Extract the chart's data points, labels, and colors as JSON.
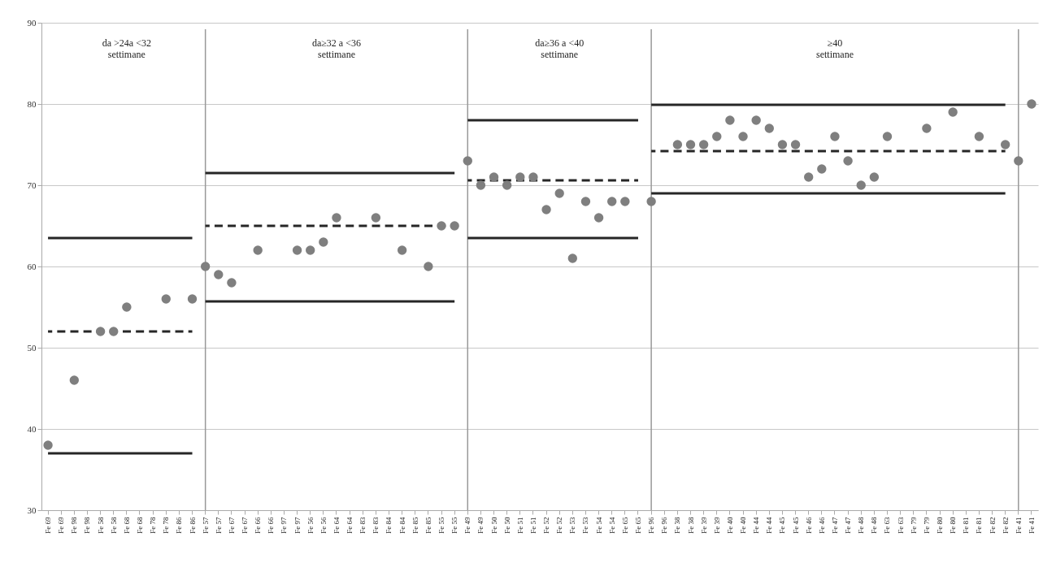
{
  "chart_data": {
    "type": "scatter",
    "categories": [
      "Fe 69",
      "Fe 69",
      "Fe 98",
      "Fe 98",
      "Fe 58",
      "Fe 58",
      "Fe 68",
      "Fe 68",
      "Fe 78",
      "Fe 78",
      "Fe 86",
      "Fe 86",
      "Fe 57",
      "Fe 57",
      "Fe 67",
      "Fe 67",
      "Fe 66",
      "Fe 66",
      "Fe 97",
      "Fe 97",
      "Fe 56",
      "Fe 56",
      "Fe 64",
      "Fe 64",
      "Fe 83",
      "Fe 83",
      "Fe 84",
      "Fe 84",
      "Fe 85",
      "Fe 85",
      "Fe 55",
      "Fe 55",
      "Fe 49",
      "Fe 49",
      "Fe 50",
      "Fe 50",
      "Fe 51",
      "Fe 51",
      "Fe 52",
      "Fe 52",
      "Fe 53",
      "Fe 53",
      "Fe 54",
      "Fe 54",
      "Fe 65",
      "Fe 65",
      "Fe 96",
      "Fe 96",
      "Fe 38",
      "Fe 38",
      "Fe 39",
      "Fe 39",
      "Fe 40",
      "Fe 40",
      "Fe 44",
      "Fe 44",
      "Fe 45",
      "Fe 45",
      "Fe 46",
      "Fe 46",
      "Fe 47",
      "Fe 47",
      "Fe 48",
      "Fe 48",
      "Fe 63",
      "Fe 63",
      "Fe 79",
      "Fe 79",
      "Fe 80",
      "Fe 80",
      "Fe 81",
      "Fe 81",
      "Fe 82",
      "Fe 82",
      "Fe 41",
      "Fe 41"
    ],
    "series": [
      {
        "type": "scatter",
        "color": "#7f7f7f",
        "marker": "circle",
        "values": [
          38,
          null,
          46,
          null,
          52,
          52,
          55,
          null,
          null,
          56,
          null,
          56,
          60,
          59,
          58,
          null,
          62,
          null,
          null,
          62,
          62,
          63,
          66,
          null,
          null,
          66,
          null,
          62,
          null,
          60,
          65,
          65,
          73,
          70,
          71,
          70,
          71,
          71,
          67,
          69,
          61,
          68,
          66,
          68,
          68,
          null,
          68,
          null,
          75,
          75,
          75,
          76,
          78,
          76,
          78,
          77,
          75,
          75,
          71,
          72,
          76,
          73,
          70,
          71,
          76,
          null,
          null,
          77,
          null,
          79,
          null,
          76,
          null,
          75,
          73,
          80
        ]
      },
      {
        "type": "line",
        "color": "#262626",
        "line_style": "solid",
        "values": [
          63.5,
          63.5,
          63.5,
          63.5,
          63.5,
          63.5,
          63.5,
          63.5,
          63.5,
          63.5,
          63.5,
          63.5,
          null,
          null,
          null,
          null,
          null,
          null,
          null,
          null,
          null,
          null,
          null,
          null,
          null,
          null,
          null,
          null,
          null,
          null,
          null,
          null,
          null,
          null,
          null,
          null,
          null,
          null,
          null,
          null,
          null,
          null,
          null,
          null,
          null,
          null,
          null,
          null,
          null,
          null,
          null,
          null,
          null,
          null,
          null,
          null,
          null,
          null,
          null,
          null,
          null,
          null,
          null,
          null,
          null,
          null,
          null,
          null,
          null,
          null,
          null,
          null,
          null,
          null,
          null,
          null
        ]
      },
      {
        "type": "line",
        "color": "#262626",
        "line_style": "dashed",
        "values": [
          52,
          52,
          52,
          52,
          52,
          52,
          52,
          52,
          52,
          52,
          52,
          52,
          null,
          null,
          null,
          null,
          null,
          null,
          null,
          null,
          null,
          null,
          null,
          null,
          null,
          null,
          null,
          null,
          null,
          null,
          null,
          null,
          null,
          null,
          null,
          null,
          null,
          null,
          null,
          null,
          null,
          null,
          null,
          null,
          null,
          null,
          null,
          null,
          null,
          null,
          null,
          null,
          null,
          null,
          null,
          null,
          null,
          null,
          null,
          null,
          null,
          null,
          null,
          null,
          null,
          null,
          null,
          null,
          null,
          null,
          null,
          null,
          null,
          null,
          null,
          null
        ]
      },
      {
        "type": "line",
        "color": "#262626",
        "line_style": "solid",
        "values": [
          37,
          37,
          37,
          37,
          37,
          37,
          37,
          37,
          37,
          37,
          37,
          37,
          null,
          null,
          null,
          null,
          null,
          null,
          null,
          null,
          null,
          null,
          null,
          null,
          null,
          null,
          null,
          null,
          null,
          null,
          null,
          null,
          null,
          null,
          null,
          null,
          null,
          null,
          null,
          null,
          null,
          null,
          null,
          null,
          null,
          null,
          null,
          null,
          null,
          null,
          null,
          null,
          null,
          null,
          null,
          null,
          null,
          null,
          null,
          null,
          null,
          null,
          null,
          null,
          null,
          null,
          null,
          null,
          null,
          null,
          null,
          null,
          null,
          null,
          null,
          null
        ]
      },
      {
        "type": "line",
        "color": "#262626",
        "line_style": "solid",
        "values": [
          null,
          null,
          null,
          null,
          null,
          null,
          null,
          null,
          null,
          null,
          null,
          null,
          71.5,
          71.5,
          71.5,
          71.5,
          71.5,
          71.5,
          71.5,
          71.5,
          71.5,
          71.5,
          71.5,
          71.5,
          71.5,
          71.5,
          71.5,
          71.5,
          71.5,
          71.5,
          71.5,
          71.5,
          null,
          null,
          null,
          null,
          null,
          null,
          null,
          null,
          null,
          null,
          null,
          null,
          null,
          null,
          null,
          null,
          null,
          null,
          null,
          null,
          null,
          null,
          null,
          null,
          null,
          null,
          null,
          null,
          null,
          null,
          null,
          null,
          null,
          null,
          null,
          null,
          null,
          null,
          null,
          null,
          null,
          null,
          null,
          null
        ]
      },
      {
        "type": "line",
        "color": "#262626",
        "line_style": "dashed",
        "values": [
          null,
          null,
          null,
          null,
          null,
          null,
          null,
          null,
          null,
          null,
          null,
          null,
          65,
          65,
          65,
          65,
          65,
          65,
          65,
          65,
          65,
          65,
          65,
          65,
          65,
          65,
          65,
          65,
          65,
          65,
          65,
          65,
          null,
          null,
          null,
          null,
          null,
          null,
          null,
          null,
          null,
          null,
          null,
          null,
          null,
          null,
          null,
          null,
          null,
          null,
          null,
          null,
          null,
          null,
          null,
          null,
          null,
          null,
          null,
          null,
          null,
          null,
          null,
          null,
          null,
          null,
          null,
          null,
          null,
          null,
          null,
          null,
          null,
          null,
          null,
          null
        ]
      },
      {
        "type": "line",
        "color": "#262626",
        "line_style": "solid",
        "values": [
          null,
          null,
          null,
          null,
          null,
          null,
          null,
          null,
          null,
          null,
          null,
          null,
          55.7,
          55.7,
          55.7,
          55.7,
          55.7,
          55.7,
          55.7,
          55.7,
          55.7,
          55.7,
          55.7,
          55.7,
          55.7,
          55.7,
          55.7,
          55.7,
          55.7,
          55.7,
          55.7,
          55.7,
          null,
          null,
          null,
          null,
          null,
          null,
          null,
          null,
          null,
          null,
          null,
          null,
          null,
          null,
          null,
          null,
          null,
          null,
          null,
          null,
          null,
          null,
          null,
          null,
          null,
          null,
          null,
          null,
          null,
          null,
          null,
          null,
          null,
          null,
          null,
          null,
          null,
          null,
          null,
          null,
          null,
          null,
          null,
          null
        ]
      },
      {
        "type": "line",
        "color": "#262626",
        "line_style": "solid",
        "values": [
          null,
          null,
          null,
          null,
          null,
          null,
          null,
          null,
          null,
          null,
          null,
          null,
          null,
          null,
          null,
          null,
          null,
          null,
          null,
          null,
          null,
          null,
          null,
          null,
          null,
          null,
          null,
          null,
          null,
          null,
          null,
          null,
          78,
          78,
          78,
          78,
          78,
          78,
          78,
          78,
          78,
          78,
          78,
          78,
          78,
          78,
          null,
          null,
          null,
          null,
          null,
          null,
          null,
          null,
          null,
          null,
          null,
          null,
          null,
          null,
          null,
          null,
          null,
          null,
          null,
          null,
          null,
          null,
          null,
          null,
          null,
          null,
          null,
          null,
          null,
          null
        ]
      },
      {
        "type": "line",
        "color": "#262626",
        "line_style": "dashed",
        "values": [
          null,
          null,
          null,
          null,
          null,
          null,
          null,
          null,
          null,
          null,
          null,
          null,
          null,
          null,
          null,
          null,
          null,
          null,
          null,
          null,
          null,
          null,
          null,
          null,
          null,
          null,
          null,
          null,
          null,
          null,
          null,
          null,
          70.6,
          70.6,
          70.6,
          70.6,
          70.6,
          70.6,
          70.6,
          70.6,
          70.6,
          70.6,
          70.6,
          70.6,
          70.6,
          70.6,
          null,
          null,
          null,
          null,
          null,
          null,
          null,
          null,
          null,
          null,
          null,
          null,
          null,
          null,
          null,
          null,
          null,
          null,
          null,
          null,
          null,
          null,
          null,
          null,
          null,
          null,
          null,
          null,
          null,
          null
        ]
      },
      {
        "type": "line",
        "color": "#262626",
        "line_style": "solid",
        "values": [
          null,
          null,
          null,
          null,
          null,
          null,
          null,
          null,
          null,
          null,
          null,
          null,
          null,
          null,
          null,
          null,
          null,
          null,
          null,
          null,
          null,
          null,
          null,
          null,
          null,
          null,
          null,
          null,
          null,
          null,
          null,
          null,
          63.5,
          63.5,
          63.5,
          63.5,
          63.5,
          63.5,
          63.5,
          63.5,
          63.5,
          63.5,
          63.5,
          63.5,
          63.5,
          63.5,
          null,
          null,
          null,
          null,
          null,
          null,
          null,
          null,
          null,
          null,
          null,
          null,
          null,
          null,
          null,
          null,
          null,
          null,
          null,
          null,
          null,
          null,
          null,
          null,
          null,
          null,
          null,
          null,
          null,
          null
        ]
      },
      {
        "type": "line",
        "color": "#262626",
        "line_style": "solid",
        "values": [
          null,
          null,
          null,
          null,
          null,
          null,
          null,
          null,
          null,
          null,
          null,
          null,
          null,
          null,
          null,
          null,
          null,
          null,
          null,
          null,
          null,
          null,
          null,
          null,
          null,
          null,
          null,
          null,
          null,
          null,
          null,
          null,
          null,
          null,
          null,
          null,
          null,
          null,
          null,
          null,
          null,
          null,
          null,
          null,
          null,
          null,
          79.9,
          79.9,
          79.9,
          79.9,
          79.9,
          79.9,
          79.9,
          79.9,
          79.9,
          79.9,
          79.9,
          79.9,
          79.9,
          79.9,
          79.9,
          79.9,
          79.9,
          79.9,
          79.9,
          79.9,
          79.9,
          79.9,
          79.9,
          79.9,
          79.9,
          79.9,
          79.9,
          79.9,
          null,
          null
        ]
      },
      {
        "type": "line",
        "color": "#262626",
        "line_style": "dashed",
        "values": [
          null,
          null,
          null,
          null,
          null,
          null,
          null,
          null,
          null,
          null,
          null,
          null,
          null,
          null,
          null,
          null,
          null,
          null,
          null,
          null,
          null,
          null,
          null,
          null,
          null,
          null,
          null,
          null,
          null,
          null,
          null,
          null,
          null,
          null,
          null,
          null,
          null,
          null,
          null,
          null,
          null,
          null,
          null,
          null,
          null,
          null,
          74.2,
          74.2,
          74.2,
          74.2,
          74.2,
          74.2,
          74.2,
          74.2,
          74.2,
          74.2,
          74.2,
          74.2,
          74.2,
          74.2,
          74.2,
          74.2,
          74.2,
          74.2,
          74.2,
          74.2,
          74.2,
          74.2,
          74.2,
          74.2,
          74.2,
          74.2,
          74.2,
          74.2,
          null,
          null
        ]
      },
      {
        "type": "line",
        "color": "#262626",
        "line_style": "solid",
        "values": [
          null,
          null,
          null,
          null,
          null,
          null,
          null,
          null,
          null,
          null,
          null,
          null,
          null,
          null,
          null,
          null,
          null,
          null,
          null,
          null,
          null,
          null,
          null,
          null,
          null,
          null,
          null,
          null,
          null,
          null,
          null,
          null,
          null,
          null,
          null,
          null,
          null,
          null,
          null,
          null,
          null,
          null,
          null,
          null,
          null,
          null,
          69,
          69,
          69,
          69,
          69,
          69,
          69,
          69,
          69,
          69,
          69,
          69,
          69,
          69,
          69,
          69,
          69,
          69,
          69,
          69,
          69,
          69,
          69,
          69,
          69,
          69,
          69,
          69,
          null,
          null
        ]
      }
    ],
    "ref_lines": [
      {
        "axis": "x",
        "value": "Fe 57",
        "color": "#999999"
      },
      {
        "axis": "x",
        "value": "Fe 49",
        "color": "#999999"
      },
      {
        "axis": "x",
        "value": "Fe 96",
        "color": "#999999"
      },
      {
        "axis": "x",
        "value": "Fe 41",
        "color": "#999999"
      }
    ],
    "annotations": [
      "da >24a <32\nsettimane",
      "da≥32 a <36\nsettimane",
      "da≥36 a <40\nsettimane",
      "≥40\nsettimane"
    ],
    "ylim": [
      30,
      90
    ],
    "yticks": [
      30,
      40,
      50,
      60,
      70,
      80,
      90
    ],
    "grid": "y"
  }
}
